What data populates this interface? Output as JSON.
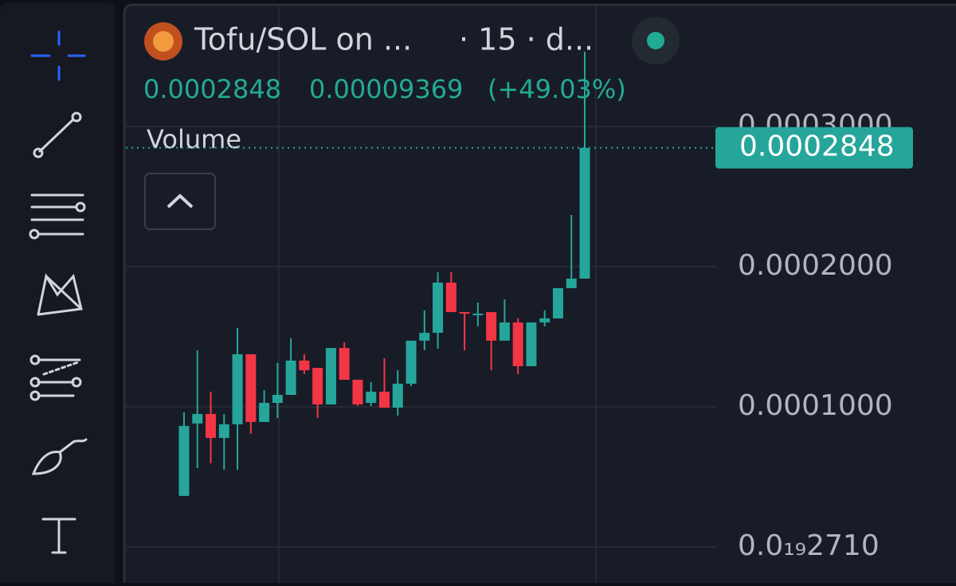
{
  "chart_data": {
    "type": "candlestick",
    "title": "Tofu/SOL on ...",
    "interval": "· 15 · d...",
    "last_price": 0.0002848,
    "change": 9.369e-05,
    "change_percent": "(+49.03%)",
    "volume_label": "Volume",
    "up_color": "#26a69a",
    "down_color": "#f23645",
    "open": [
      3.64e-05,
      8.81e-05,
      9.49e-05,
      7.78e-05,
      8.75e-05,
      0.0001375,
      8.92e-05,
      0.0001028,
      0.0001085,
      0.000133,
      0.0001278,
      0.0001017,
      0.000142,
      0.0001193,
      0.0001028,
      0.0001108,
      9.94e-05,
      0.0001165,
      0.0001472,
      0.0001528,
      0.0001886,
      0.0001676,
      0.0001659,
      0.0001676,
      0.0001472,
      0.0001602,
      0.000129,
      0.0001602,
      0.0001631,
      0.0001847,
      0.0001915
    ],
    "high": [
      9.6e-05,
      0.0001403,
      0.0001108,
      9.49e-05,
      0.0001563,
      0.0001375,
      0.0001119,
      0.0001313,
      0.0001489,
      0.0001375,
      0.0001278,
      0.000142,
      0.000146,
      0.0001193,
      0.0001176,
      0.0001347,
      0.0001261,
      0.0001472,
      0.0001688,
      0.000196,
      0.000196,
      0.0001676,
      0.0001744,
      0.0001676,
      0.0001767,
      0.0001631,
      0.0001602,
      0.0001688,
      0.0001847,
      0.0002369,
      0.0003534
    ],
    "low": [
      3.64e-05,
      5.63e-05,
      5.97e-05,
      5.51e-05,
      5.51e-05,
      8.07e-05,
      8.92e-05,
      9.2e-05,
      0.0001085,
      0.0001233,
      9.2e-05,
      0.0001017,
      0.0001193,
      0.0001006,
      0.0001006,
      9.94e-05,
      9.38e-05,
      0.0001148,
      0.0001403,
      0.0001415,
      0.0001676,
      0.0001403,
      0.0001574,
      0.0001261,
      0.0001472,
      0.0001233,
      0.000129,
      0.0001574,
      0.0001631,
      0.0001847,
      0.0001915
    ],
    "close": [
      8.64e-05,
      9.49e-05,
      7.78e-05,
      8.75e-05,
      0.0001375,
      8.92e-05,
      0.0001028,
      0.0001085,
      0.000133,
      0.0001261,
      0.0001017,
      0.000142,
      0.0001193,
      0.0001017,
      0.0001108,
      9.94e-05,
      0.0001165,
      0.0001472,
      0.0001528,
      0.0001886,
      0.0001676,
      0.0001665,
      0.0001665,
      0.0001472,
      0.0001602,
      0.000129,
      0.0001602,
      0.0001631,
      0.0001847,
      0.0001915,
      0.0002848
    ],
    "ylim": [
      -2.56e-05,
      0.0003903
    ],
    "yticks": [
      {
        "value": 2.71e-20,
        "label": "0.0₁₉2710"
      },
      {
        "value": 0.0001,
        "label": "0.0001000"
      },
      {
        "value": 0.0002,
        "label": "0.0002000"
      },
      {
        "value": 0.0003,
        "label": "0.0003000"
      }
    ],
    "grid": true
  }
}
